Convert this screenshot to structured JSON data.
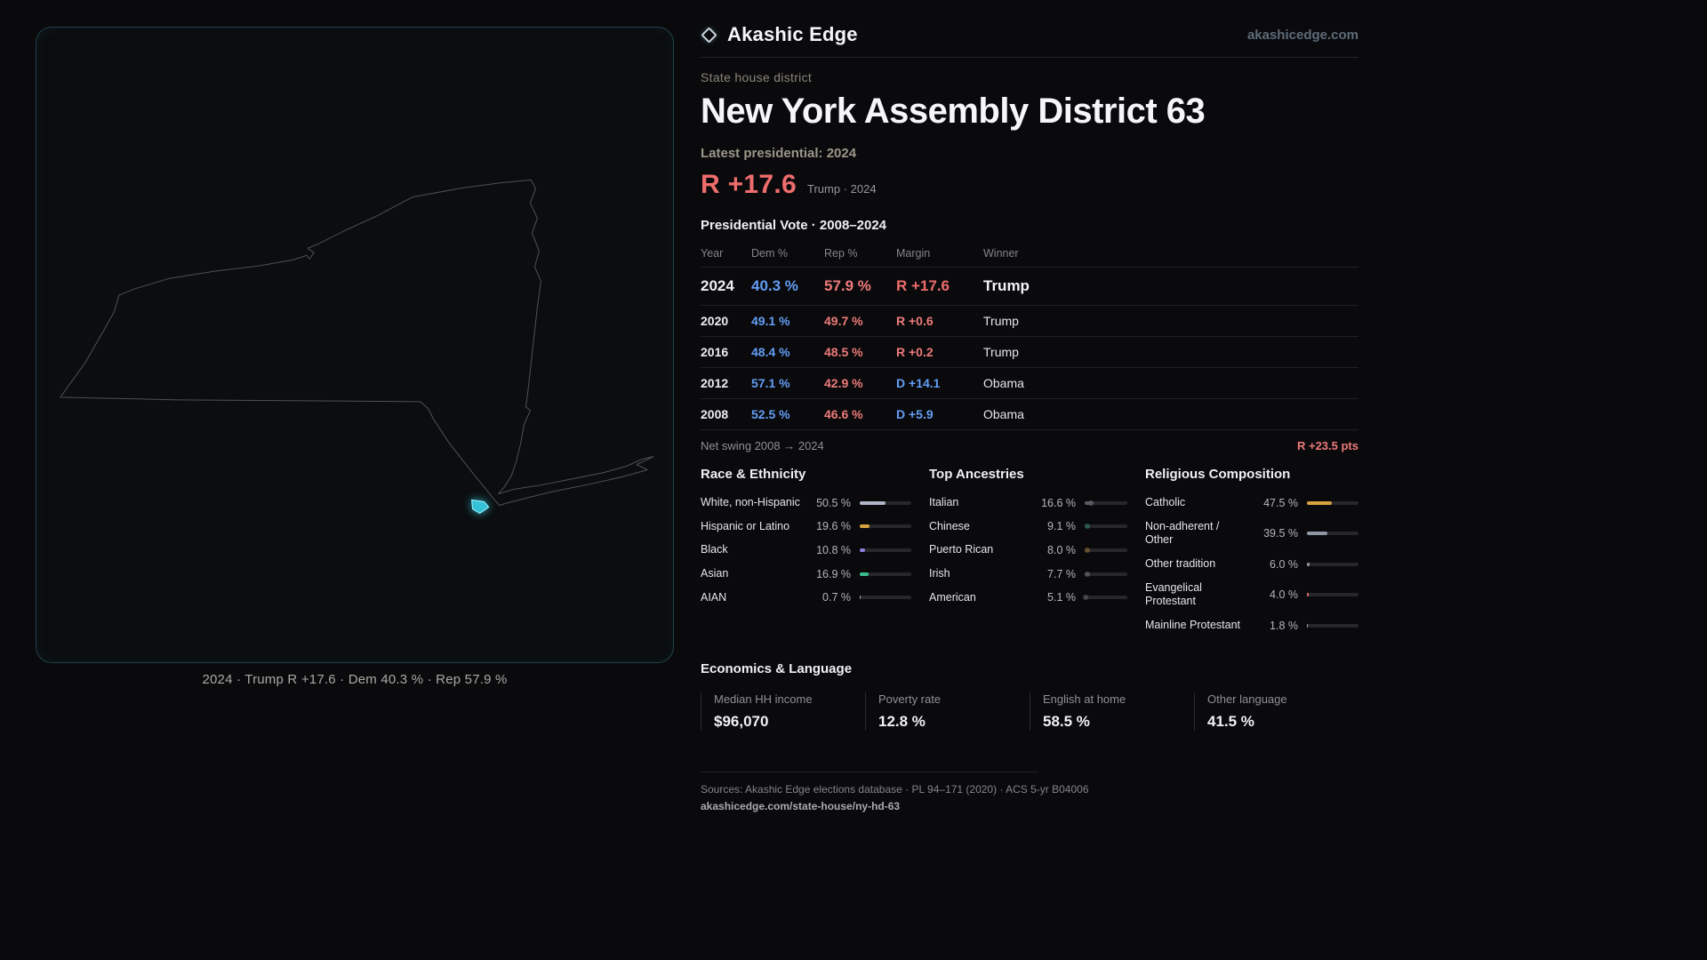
{
  "header": {
    "brand": "Akashic Edge",
    "logo_icon": "diamond-icon",
    "site": "akashicedge.com"
  },
  "district": {
    "kicker": "State house district",
    "title": "New York Assembly District 63",
    "latest_label": "Latest presidential: 2024",
    "margin_big": "R +17.6",
    "margin_note": "Trump · 2024"
  },
  "map": {
    "caption": "2024 · Trump R +17.6 · Dem 40.3 % · Rep 57.9 %",
    "district_color": "#38d0e6"
  },
  "vote_table": {
    "title": "Presidential Vote · 2008–2024",
    "columns": [
      "Year",
      "Dem %",
      "Rep %",
      "Margin",
      "Winner"
    ],
    "rows": [
      {
        "year": "2024",
        "dem": "40.3 %",
        "rep": "57.9 %",
        "margin": "R +17.6",
        "margin_color": "#ee6c6c",
        "winner": "Trump"
      },
      {
        "year": "2020",
        "dem": "49.1 %",
        "rep": "49.7 %",
        "margin": "R +0.6",
        "margin_color": "#ee7a7a",
        "winner": "Trump"
      },
      {
        "year": "2016",
        "dem": "48.4 %",
        "rep": "48.5 %",
        "margin": "R +0.2",
        "margin_color": "#ee7a7a",
        "winner": "Trump"
      },
      {
        "year": "2012",
        "dem": "57.1 %",
        "rep": "42.9 %",
        "margin": "D +14.1",
        "margin_color": "#639df5",
        "winner": "Obama"
      },
      {
        "year": "2008",
        "dem": "52.5 %",
        "rep": "46.6 %",
        "margin": "D +5.9",
        "margin_color": "#639df5",
        "winner": "Obama"
      }
    ],
    "net_swing_label": "Net swing 2008 → 2024",
    "net_swing_value": "R +23.5 pts"
  },
  "demographics": {
    "race": {
      "title": "Race & Ethnicity",
      "rows": [
        {
          "label": "White, non-Hispanic",
          "value": "50.5 %",
          "pct": 50.5,
          "color": "#b0b6c6"
        },
        {
          "label": "Hispanic or Latino",
          "value": "19.6 %",
          "pct": 19.6,
          "color": "#d7a33e"
        },
        {
          "label": "Black",
          "value": "10.8 %",
          "pct": 10.8,
          "color": "#8d7ee0"
        },
        {
          "label": "Asian",
          "value": "16.9 %",
          "pct": 16.9,
          "color": "#39bd8c"
        },
        {
          "label": "AIAN",
          "value": "0.7 %",
          "pct": 0.7,
          "color": "#9aa0aa"
        }
      ]
    },
    "ancestries": {
      "title": "Top Ancestries",
      "rows": [
        {
          "label": "Italian",
          "value": "16.6 %",
          "pct": 16.6,
          "color": "#b9bec8"
        },
        {
          "label": "Chinese",
          "value": "9.1 %",
          "pct": 9.1,
          "color": "#39bd8c"
        },
        {
          "label": "Puerto Rican",
          "value": "8.0 %",
          "pct": 8.0,
          "color": "#d7a33e"
        },
        {
          "label": "Irish",
          "value": "7.7 %",
          "pct": 7.7,
          "color": "#a6abb5"
        },
        {
          "label": "American",
          "value": "5.1 %",
          "pct": 5.1,
          "color": "#8f949e"
        }
      ]
    },
    "religion": {
      "title": "Religious Composition",
      "rows": [
        {
          "label": "Catholic",
          "value": "47.5 %",
          "pct": 47.5,
          "color": "#d7a33e"
        },
        {
          "label": "Non-adherent / Other",
          "value": "39.5 %",
          "pct": 39.5,
          "color": "#9097a4"
        },
        {
          "label": "Other tradition",
          "value": "6.0 %",
          "pct": 6.0,
          "color": "#9097a4"
        },
        {
          "label": "Evangelical Protestant",
          "value": "4.0 %",
          "pct": 4.0,
          "color": "#e06c6c"
        },
        {
          "label": "Mainline Protestant",
          "value": "1.8 %",
          "pct": 1.8,
          "color": "#9aa0aa"
        }
      ]
    }
  },
  "economics": {
    "title": "Economics & Language",
    "stats": [
      {
        "label": "Median HH income",
        "value": "$96,070"
      },
      {
        "label": "Poverty rate",
        "value": "12.8 %"
      },
      {
        "label": "English at home",
        "value": "58.5 %"
      },
      {
        "label": "Other language",
        "value": "41.5 %"
      }
    ]
  },
  "footer": {
    "sources": "Sources: Akashic Edge elections database · PL 94–171 (2020) · ACS 5-yr B04006",
    "permalink": "akashicedge.com/state-house/ny-hd-63"
  }
}
